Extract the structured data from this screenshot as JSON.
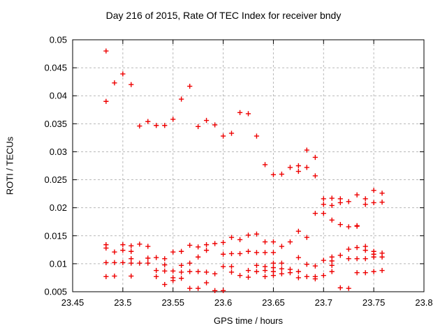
{
  "chart_data": {
    "type": "scatter",
    "title": "Day 216 of 2015, Rate Of TEC Index for receiver bndy",
    "xlabel": "GPS time / hours",
    "ylabel": "ROTI / TECUs",
    "xlim": [
      23.45,
      23.8
    ],
    "ylim": [
      0.005,
      0.05
    ],
    "x_ticks": {
      "values": [
        23.45,
        23.5,
        23.55,
        23.6,
        23.65,
        23.7,
        23.75,
        23.8
      ],
      "labels": [
        "23.45",
        "23.5",
        "23.55",
        "23.6",
        "23.65",
        "23.7",
        "23.75",
        "23.8"
      ]
    },
    "y_ticks": {
      "values": [
        0.005,
        0.01,
        0.015,
        0.02,
        0.025,
        0.03,
        0.035,
        0.04,
        0.045,
        0.05
      ],
      "labels": [
        "0.005",
        "0.01",
        "0.015",
        "0.02",
        "0.025",
        "0.03",
        "0.035",
        "0.04",
        "0.045",
        "0.05"
      ]
    },
    "grid": true,
    "legend": "none",
    "marker_shape": "plus",
    "marker_color": "#ee0000",
    "grid_color": "#b8b8b8",
    "frame_color": "#000000",
    "points": [
      [
        23.4833,
        0.048
      ],
      [
        23.4833,
        0.039
      ],
      [
        23.4833,
        0.0134
      ],
      [
        23.4833,
        0.0128
      ],
      [
        23.4833,
        0.0102
      ],
      [
        23.4833,
        0.0077
      ],
      [
        23.4917,
        0.0423
      ],
      [
        23.4917,
        0.0121
      ],
      [
        23.4917,
        0.0102
      ],
      [
        23.4917,
        0.0078
      ],
      [
        23.5,
        0.0439
      ],
      [
        23.5,
        0.0134
      ],
      [
        23.5,
        0.0124
      ],
      [
        23.5,
        0.0102
      ],
      [
        23.5083,
        0.042
      ],
      [
        23.5083,
        0.0132
      ],
      [
        23.5083,
        0.0122
      ],
      [
        23.5083,
        0.0109
      ],
      [
        23.5083,
        0.0101
      ],
      [
        23.5083,
        0.0078
      ],
      [
        23.5167,
        0.0346
      ],
      [
        23.5167,
        0.0135
      ],
      [
        23.5167,
        0.0101
      ],
      [
        23.525,
        0.0354
      ],
      [
        23.525,
        0.0131
      ],
      [
        23.525,
        0.011
      ],
      [
        23.525,
        0.0101
      ],
      [
        23.5333,
        0.0347
      ],
      [
        23.5333,
        0.0111
      ],
      [
        23.5333,
        0.0088
      ],
      [
        23.5333,
        0.0077
      ],
      [
        23.5417,
        0.0347
      ],
      [
        23.5417,
        0.0109
      ],
      [
        23.5417,
        0.0098
      ],
      [
        23.5417,
        0.0087
      ],
      [
        23.5417,
        0.0063
      ],
      [
        23.55,
        0.0358
      ],
      [
        23.55,
        0.0121
      ],
      [
        23.55,
        0.0087
      ],
      [
        23.55,
        0.0075
      ],
      [
        23.55,
        0.007
      ],
      [
        23.5583,
        0.0394
      ],
      [
        23.5583,
        0.0122
      ],
      [
        23.5583,
        0.0097
      ],
      [
        23.5583,
        0.0085
      ],
      [
        23.5583,
        0.0074
      ],
      [
        23.5667,
        0.0417
      ],
      [
        23.5667,
        0.0133
      ],
      [
        23.5667,
        0.0101
      ],
      [
        23.5667,
        0.0086
      ],
      [
        23.5667,
        0.0056
      ],
      [
        23.575,
        0.0345
      ],
      [
        23.575,
        0.013
      ],
      [
        23.575,
        0.0112
      ],
      [
        23.575,
        0.0086
      ],
      [
        23.575,
        0.0056
      ],
      [
        23.5833,
        0.0356
      ],
      [
        23.5833,
        0.0134
      ],
      [
        23.5833,
        0.0124
      ],
      [
        23.5833,
        0.0085
      ],
      [
        23.5833,
        0.0066
      ],
      [
        23.5917,
        0.0348
      ],
      [
        23.5917,
        0.0136
      ],
      [
        23.5917,
        0.0082
      ],
      [
        23.5917,
        0.0052
      ],
      [
        23.6,
        0.0328
      ],
      [
        23.6,
        0.0138
      ],
      [
        23.6,
        0.0117
      ],
      [
        23.6,
        0.0095
      ],
      [
        23.6,
        0.0052
      ],
      [
        23.6083,
        0.0333
      ],
      [
        23.6083,
        0.0147
      ],
      [
        23.6083,
        0.0118
      ],
      [
        23.6083,
        0.0095
      ],
      [
        23.6083,
        0.0085
      ],
      [
        23.6167,
        0.037
      ],
      [
        23.6167,
        0.0143
      ],
      [
        23.6167,
        0.0118
      ],
      [
        23.6167,
        0.0079
      ],
      [
        23.625,
        0.0368
      ],
      [
        23.625,
        0.0151
      ],
      [
        23.625,
        0.0122
      ],
      [
        23.625,
        0.0088
      ],
      [
        23.625,
        0.0076
      ],
      [
        23.6333,
        0.0328
      ],
      [
        23.6333,
        0.0153
      ],
      [
        23.6333,
        0.012
      ],
      [
        23.6333,
        0.0097
      ],
      [
        23.6333,
        0.0086
      ],
      [
        23.6417,
        0.0277
      ],
      [
        23.6417,
        0.0139
      ],
      [
        23.6417,
        0.012
      ],
      [
        23.6417,
        0.0095
      ],
      [
        23.6417,
        0.0088
      ],
      [
        23.6417,
        0.0077
      ],
      [
        23.65,
        0.0259
      ],
      [
        23.65,
        0.0139
      ],
      [
        23.65,
        0.012
      ],
      [
        23.65,
        0.0101
      ],
      [
        23.65,
        0.0093
      ],
      [
        23.65,
        0.0086
      ],
      [
        23.65,
        0.0079
      ],
      [
        23.6583,
        0.026
      ],
      [
        23.6583,
        0.0131
      ],
      [
        23.6583,
        0.0101
      ],
      [
        23.6583,
        0.0091
      ],
      [
        23.6583,
        0.0082
      ],
      [
        23.6667,
        0.0272
      ],
      [
        23.6667,
        0.0139
      ],
      [
        23.6667,
        0.009
      ],
      [
        23.6667,
        0.0084
      ],
      [
        23.675,
        0.0275
      ],
      [
        23.675,
        0.0265
      ],
      [
        23.675,
        0.0158
      ],
      [
        23.675,
        0.0111
      ],
      [
        23.675,
        0.0086
      ],
      [
        23.675,
        0.0075
      ],
      [
        23.6833,
        0.0303
      ],
      [
        23.6833,
        0.0272
      ],
      [
        23.6833,
        0.0147
      ],
      [
        23.6833,
        0.0099
      ],
      [
        23.6833,
        0.0077
      ],
      [
        23.6917,
        0.029
      ],
      [
        23.6917,
        0.0257
      ],
      [
        23.6917,
        0.019
      ],
      [
        23.6917,
        0.0096
      ],
      [
        23.6917,
        0.0077
      ],
      [
        23.6917,
        0.0073
      ],
      [
        23.7,
        0.0216
      ],
      [
        23.7,
        0.0206
      ],
      [
        23.7,
        0.019
      ],
      [
        23.7,
        0.0106
      ],
      [
        23.7,
        0.0079
      ],
      [
        23.7083,
        0.0217
      ],
      [
        23.7083,
        0.0204
      ],
      [
        23.7083,
        0.0178
      ],
      [
        23.7083,
        0.0112
      ],
      [
        23.7083,
        0.0105
      ],
      [
        23.7083,
        0.0097
      ],
      [
        23.7083,
        0.0086
      ],
      [
        23.7167,
        0.0216
      ],
      [
        23.7167,
        0.0209
      ],
      [
        23.7167,
        0.017
      ],
      [
        23.7167,
        0.0115
      ],
      [
        23.7167,
        0.0057
      ],
      [
        23.725,
        0.0211
      ],
      [
        23.725,
        0.0166
      ],
      [
        23.725,
        0.0126
      ],
      [
        23.725,
        0.0109
      ],
      [
        23.725,
        0.0056
      ],
      [
        23.7333,
        0.0223
      ],
      [
        23.7333,
        0.0168
      ],
      [
        23.7333,
        0.0167
      ],
      [
        23.7333,
        0.0129
      ],
      [
        23.7333,
        0.0109
      ],
      [
        23.7333,
        0.0084
      ],
      [
        23.7417,
        0.0216
      ],
      [
        23.7417,
        0.0206
      ],
      [
        23.7417,
        0.0131
      ],
      [
        23.7417,
        0.0124
      ],
      [
        23.7417,
        0.0109
      ],
      [
        23.7417,
        0.0084
      ],
      [
        23.75,
        0.0231
      ],
      [
        23.75,
        0.0209
      ],
      [
        23.75,
        0.0122
      ],
      [
        23.75,
        0.0117
      ],
      [
        23.75,
        0.0112
      ],
      [
        23.75,
        0.0086
      ],
      [
        23.7583,
        0.0226
      ],
      [
        23.7583,
        0.021
      ],
      [
        23.7583,
        0.0119
      ],
      [
        23.7583,
        0.0112
      ],
      [
        23.7583,
        0.0088
      ]
    ]
  }
}
